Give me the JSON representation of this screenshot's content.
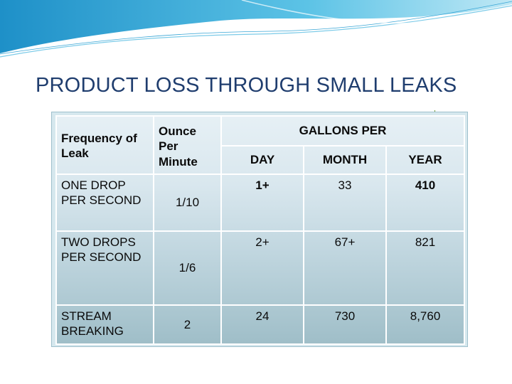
{
  "slide": {
    "title": "PRODUCT LOSS THROUGH SMALL LEAKS"
  },
  "colors": {
    "title": "#1f3d6e",
    "swoosh": "#4bb3dc",
    "table_light": "#e6f0f5",
    "table_dark": "#9fbec8"
  },
  "table": {
    "header": {
      "frequency": "Frequency of Leak",
      "ounce": "Ounce Per Minute",
      "gallons_per": "GALLONS PER",
      "day": "DAY",
      "month": "MONTH",
      "year": "YEAR"
    },
    "rows": [
      {
        "label": "ONE DROP PER SECOND",
        "ounce": "1/10",
        "day": "1+",
        "month": "33",
        "year": "410"
      },
      {
        "label": "TWO DROPS PER SECOND",
        "ounce": "1/6",
        "day": "2+",
        "month": "67+",
        "year": "821"
      },
      {
        "label": "STREAM BREAKING",
        "ounce": "2",
        "day": "24",
        "month": "730",
        "year": "8,760"
      }
    ]
  }
}
